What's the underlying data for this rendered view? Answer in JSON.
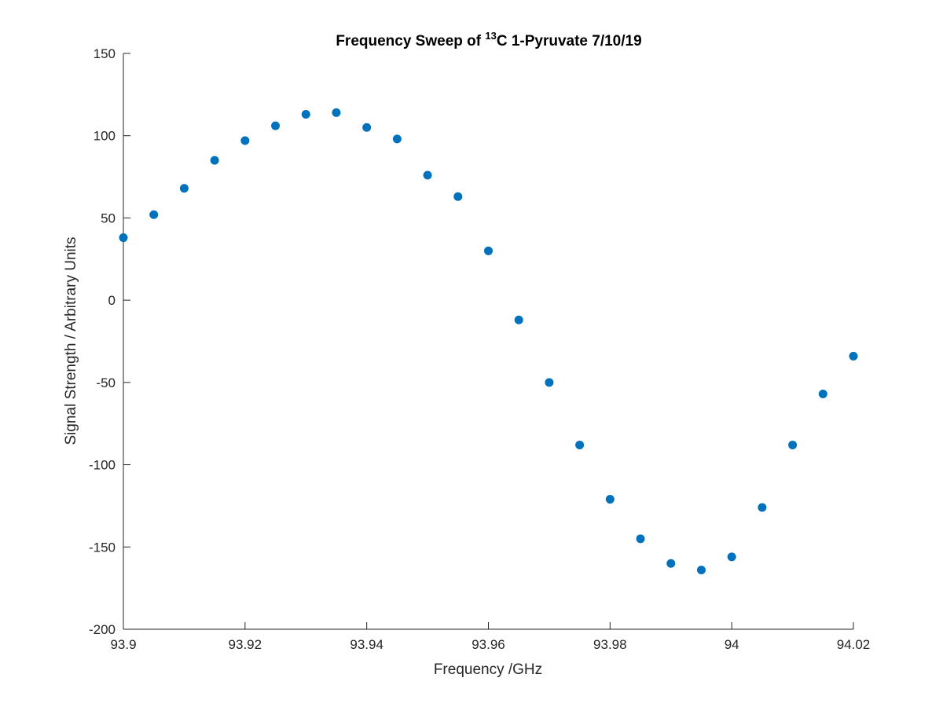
{
  "chart_data": {
    "type": "scatter",
    "title": {
      "prefix": "Frequency Sweep of ",
      "superscript": "13",
      "suffix": "C 1-Pyruvate 7/10/19"
    },
    "xlabel": "Frequency /GHz",
    "ylabel": "Signal Strength / Arbitrary Units",
    "xlim": [
      93.9,
      94.02
    ],
    "ylim": [
      -200,
      150
    ],
    "xticks": [
      93.9,
      93.92,
      93.94,
      93.96,
      93.98,
      94.0,
      94.02
    ],
    "xtick_labels": [
      "93.9",
      "93.92",
      "93.94",
      "93.96",
      "93.98",
      "94",
      "94.02"
    ],
    "yticks": [
      -200,
      -150,
      -100,
      -50,
      0,
      50,
      100,
      150
    ],
    "ytick_labels": [
      "-200",
      "-150",
      "-100",
      "-50",
      "0",
      "50",
      "100",
      "150"
    ],
    "grid": false,
    "marker_color": "#0072BD",
    "series": [
      {
        "x": [
          93.9,
          93.905,
          93.91,
          93.915,
          93.92,
          93.925,
          93.93,
          93.935,
          93.94,
          93.945,
          93.95,
          93.955,
          93.96,
          93.965,
          93.97,
          93.975,
          93.98,
          93.985,
          93.99,
          93.995,
          94.0,
          94.005,
          94.01,
          94.015,
          94.02
        ],
        "y": [
          38,
          52,
          68,
          85,
          97,
          106,
          113,
          114,
          105,
          98,
          76,
          63,
          30,
          -12,
          -50,
          -88,
          -121,
          -145,
          -160,
          -164,
          -156,
          -126,
          -88,
          -57,
          -34
        ]
      }
    ]
  }
}
